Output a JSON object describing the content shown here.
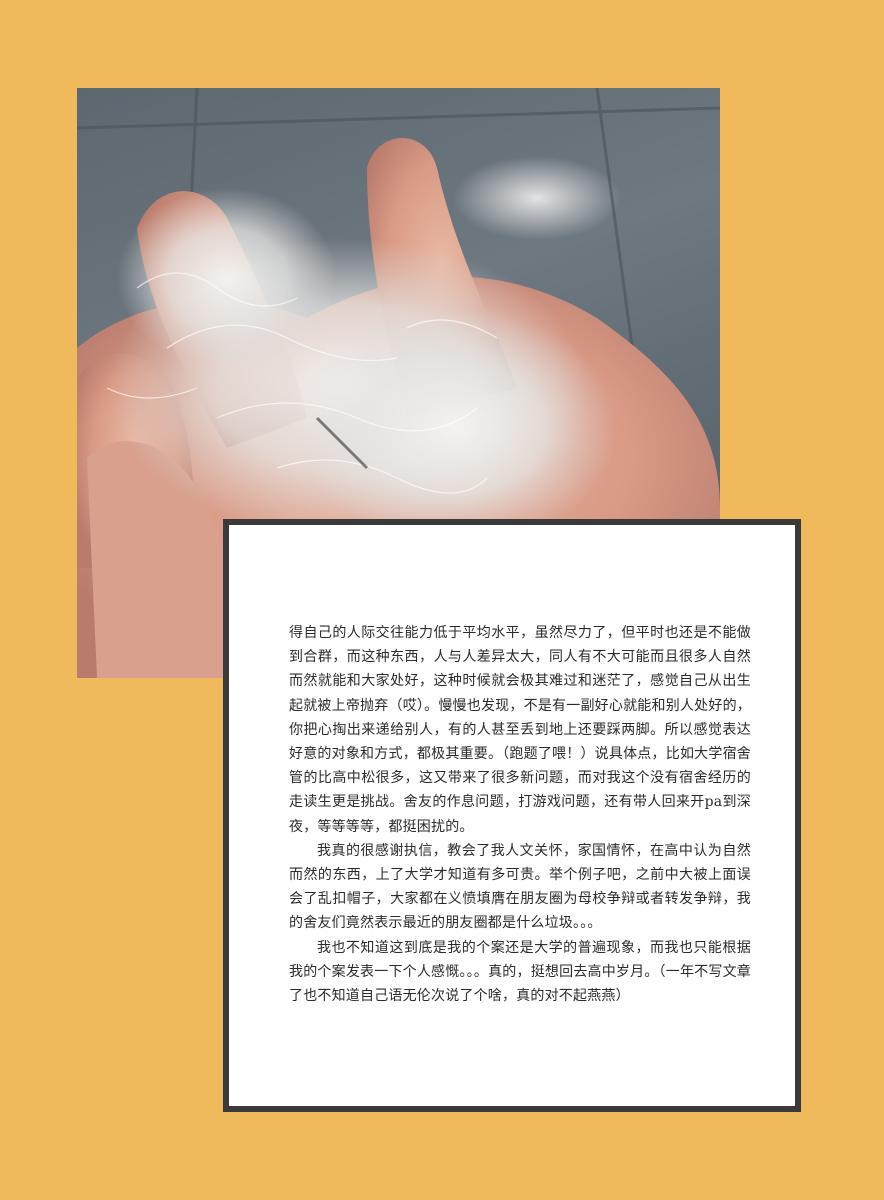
{
  "photo": {
    "description_icon": "hand-holding-down-feathers-icon"
  },
  "article": {
    "paragraphs": [
      "得自己的人际交往能力低于平均水平，虽然尽力了，但平时也还是不能做到合群，而这种东西，人与人差异太大，同人有不大可能而且很多人自然而然就能和大家处好，这种时候就会极其难过和迷茫了，感觉自己从出生起就被上帝抛弃（哎）。慢慢也发现，不是有一副好心就能和别人处好的，你把心掏出来递给别人，有的人甚至丢到地上还要踩两脚。所以感觉表达好意的对象和方式，都极其重要。（跑题了喂！）说具体点，比如大学宿舍管的比高中松很多，这又带来了很多新问题，而对我这个没有宿舍经历的走读生更是挑战。舍友的作息问题，打游戏问题，还有带人回来开pa到深夜，等等等等，都挺困扰的。",
      "我真的很感谢执信，教会了我人文关怀，家国情怀，在高中认为自然而然的东西，上了大学才知道有多可贵。举个例子吧，之前中大被上面误会了乱扣帽子，大家都在义愤填膺在朋友圈为母校争辩或者转发争辩，我的舍友们竟然表示最近的朋友圈都是什么垃圾。。。",
      "我也不知道这到底是我的个案还是大学的普遍现象，而我也只能根据我的个案发表一下个人感慨。。。真的，挺想回去高中岁月。（一年不写文章了也不知道自己语无伦次说了个啥，真的对不起燕燕）"
    ]
  }
}
